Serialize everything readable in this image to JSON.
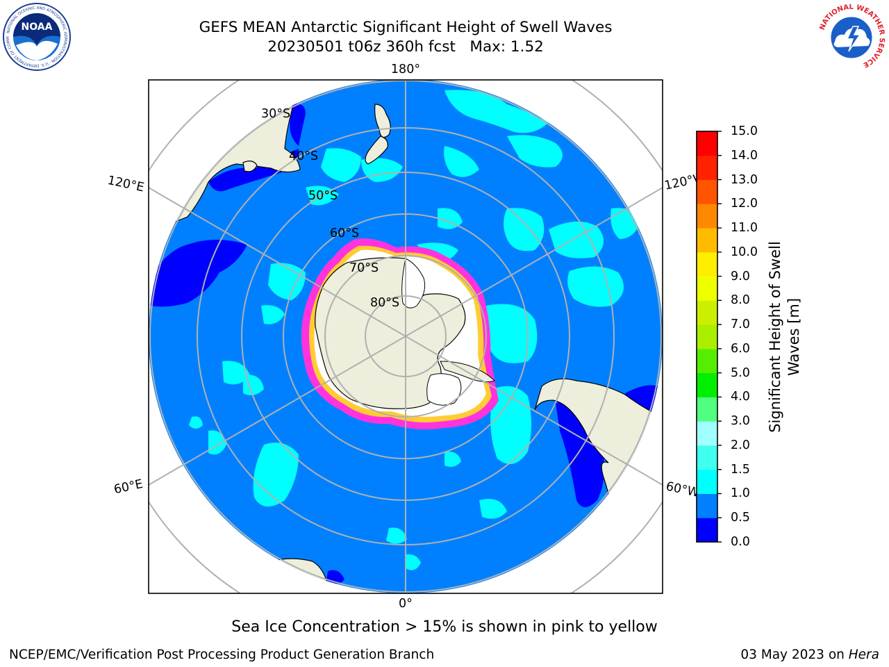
{
  "title": {
    "line1": "GEFS MEAN Antarctic Significant Height of Swell Waves",
    "line2": "20230501 t06z 360h fcst   Max: 1.52"
  },
  "map": {
    "projection": "south-polar-stereographic",
    "longitude_labels": [
      "180°",
      "120°E",
      "120°W",
      "60°E",
      "60°W",
      "0°"
    ],
    "latitude_labels": [
      "30°S",
      "40°S",
      "50°S",
      "60°S",
      "70°S",
      "80°S"
    ],
    "colors": {
      "ocean_main": "#0080ff",
      "ocean_low": "#0000ff",
      "ocean_high": "#00ffff",
      "land": "#eeeedc",
      "sea_ice": "#ffffff",
      "ice_edge_pink": "#ff33dd",
      "ice_edge_yellow": "#ffcc33",
      "gridlines": "#b0b0b0"
    }
  },
  "colorbar": {
    "label_line1": "Significant Height of Swell",
    "label_line2": "Waves [m]",
    "ticks": [
      "0.0",
      "0.5",
      "1.0",
      "1.5",
      "2.0",
      "3.0",
      "4.0",
      "5.0",
      "6.0",
      "7.0",
      "8.0",
      "9.0",
      "10.0",
      "11.0",
      "12.0",
      "13.0",
      "14.0",
      "15.0"
    ],
    "colors": [
      "#0000ff",
      "#0080ff",
      "#00ffff",
      "#40ffee",
      "#a0ffff",
      "#50ff80",
      "#00ee00",
      "#55ee00",
      "#aaee00",
      "#ccee00",
      "#eeff00",
      "#ffee00",
      "#ffbb00",
      "#ff8800",
      "#ff5500",
      "#ff2200",
      "#ff0000"
    ]
  },
  "caption": "Sea Ice Concentration > 15% is shown in pink to yellow",
  "footer": {
    "left": "NCEP/EMC/Verification Post Processing Product Generation Branch",
    "date": "03 May 2023 on ",
    "host": "Hera"
  },
  "logos": {
    "noaa": {
      "text": "NOAA",
      "ring_text": "NATIONAL OCEANIC AND ATMOSPHERIC ADMINISTRATION · U.S. DEPARTMENT OF COMMERCE"
    },
    "nws": {
      "ring_text": "NATIONAL WEATHER SERVICE"
    }
  }
}
